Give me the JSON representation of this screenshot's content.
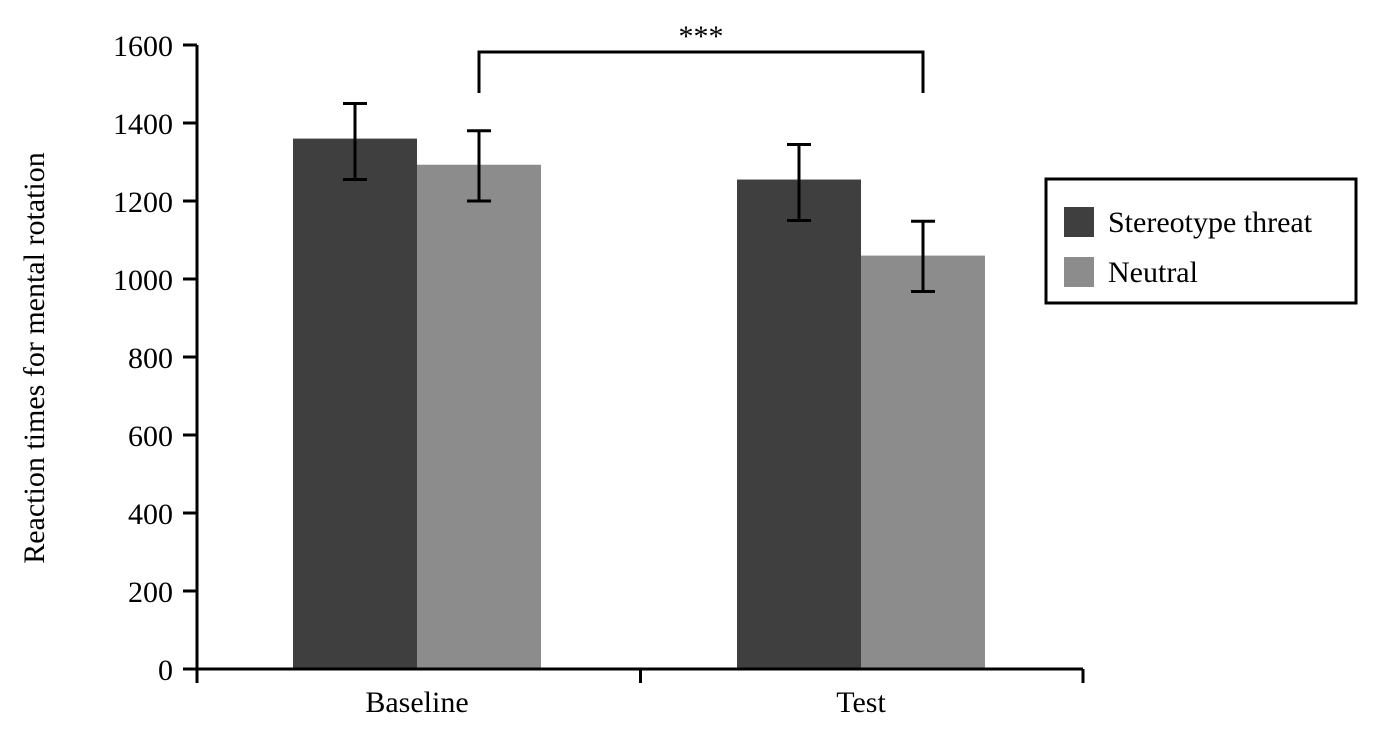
{
  "chart_data": {
    "type": "bar",
    "categories": [
      "Baseline",
      "Test"
    ],
    "series": [
      {
        "name": "Stereotype threat",
        "values": [
          1360,
          1255
        ],
        "error_low": [
          1255,
          1150
        ],
        "error_high": [
          1450,
          1345
        ],
        "color": "#3f3f3f"
      },
      {
        "name": "Neutral",
        "values": [
          1293,
          1060
        ],
        "error_low": [
          1200,
          968
        ],
        "error_high": [
          1380,
          1148
        ],
        "color": "#8c8c8c"
      }
    ],
    "title": "",
    "xlabel": "",
    "ylabel": "Reaction times for mental rotation",
    "ylim": [
      0,
      1600
    ],
    "yticks": [
      0,
      200,
      400,
      600,
      800,
      1000,
      1200,
      1400,
      1600
    ],
    "grid": false,
    "legend_position": "right",
    "significance": {
      "label": "***",
      "from": "Baseline / Neutral",
      "to": "Test / Neutral"
    }
  }
}
